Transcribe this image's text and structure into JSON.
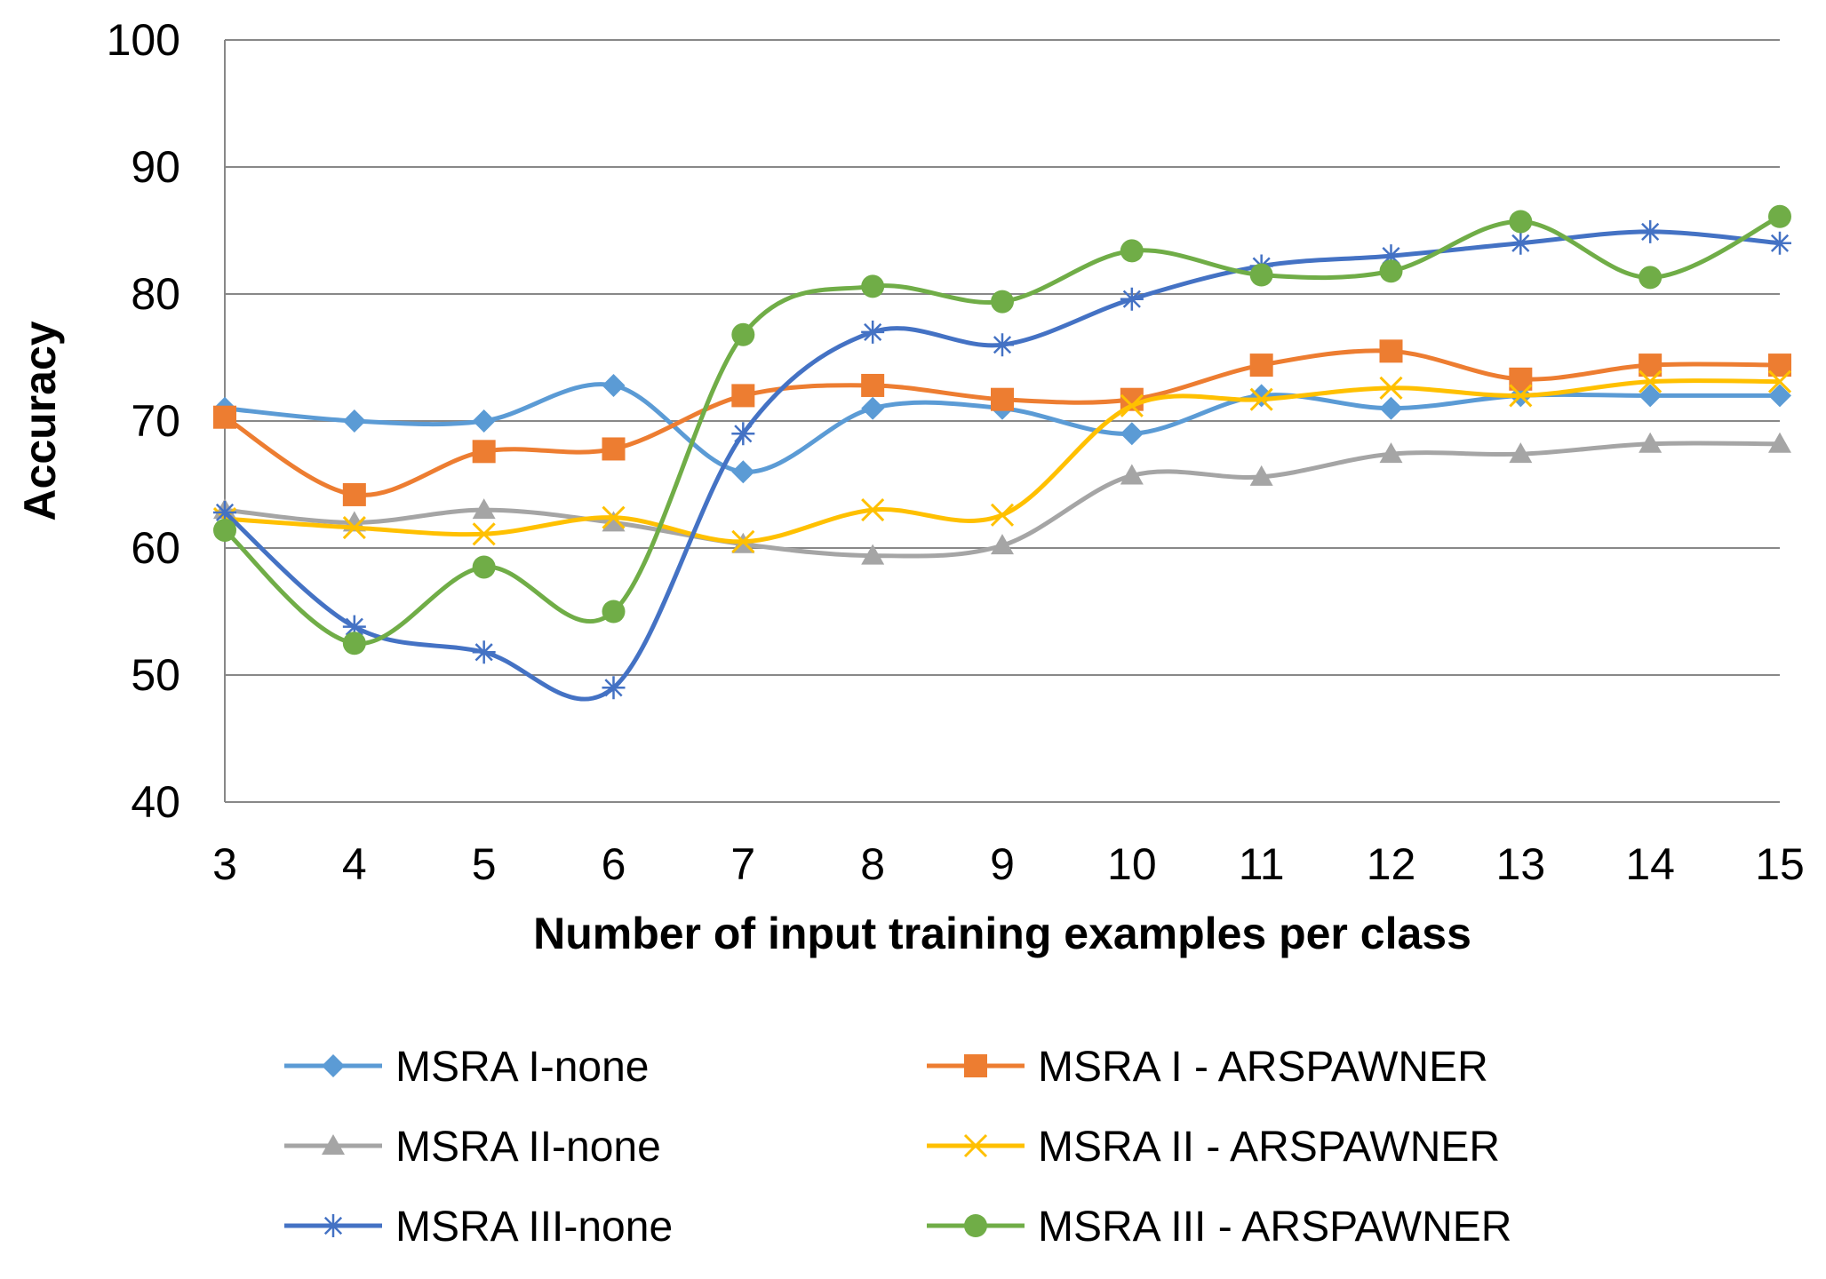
{
  "chart_data": {
    "type": "line",
    "title": "",
    "xlabel": "Number of input training examples per class",
    "ylabel": "Accuracy",
    "x": [
      3,
      4,
      5,
      6,
      7,
      8,
      9,
      10,
      11,
      12,
      13,
      14,
      15
    ],
    "ylim": [
      40,
      100
    ],
    "yticks": [
      40,
      50,
      60,
      70,
      80,
      90,
      100
    ],
    "grid": true,
    "legend": "bottom",
    "series": [
      {
        "name": "MSRA I-none",
        "color": "#5b9bd5",
        "marker": "diamond",
        "values": [
          71,
          70,
          70,
          72.8,
          66,
          71,
          71,
          69,
          72,
          71,
          72,
          72,
          72
        ]
      },
      {
        "name": "MSRA I - ARSPAWNER",
        "color": "#ed7d31",
        "marker": "square",
        "values": [
          70.3,
          64.2,
          67.6,
          67.8,
          72,
          72.8,
          71.7,
          71.7,
          74.4,
          75.5,
          73.3,
          74.4,
          74.4
        ]
      },
      {
        "name": "MSRA II-none",
        "color": "#a5a5a5",
        "marker": "triangle",
        "values": [
          63,
          62,
          63,
          62,
          60.3,
          59.4,
          60.2,
          65.7,
          65.6,
          67.4,
          67.4,
          68.2,
          68.2
        ]
      },
      {
        "name": "MSRA II - ARSPAWNER",
        "color": "#ffc000",
        "marker": "x",
        "values": [
          62.3,
          61.6,
          61.1,
          62.4,
          60.5,
          63,
          62.6,
          71.2,
          71.7,
          72.6,
          72,
          73.1,
          73.1
        ]
      },
      {
        "name": "MSRA III-none",
        "color": "#4472c4",
        "marker": "star",
        "values": [
          62.8,
          53.8,
          51.8,
          49,
          69,
          77,
          76,
          79.6,
          82.2,
          83,
          84,
          84.9,
          84
        ]
      },
      {
        "name": "MSRA III - ARSPAWNER",
        "color": "#70ad47",
        "marker": "circle",
        "values": [
          61.4,
          52.5,
          58.5,
          55,
          76.8,
          80.6,
          79.4,
          83.4,
          81.5,
          81.8,
          85.7,
          81.3,
          86.1
        ]
      }
    ]
  }
}
